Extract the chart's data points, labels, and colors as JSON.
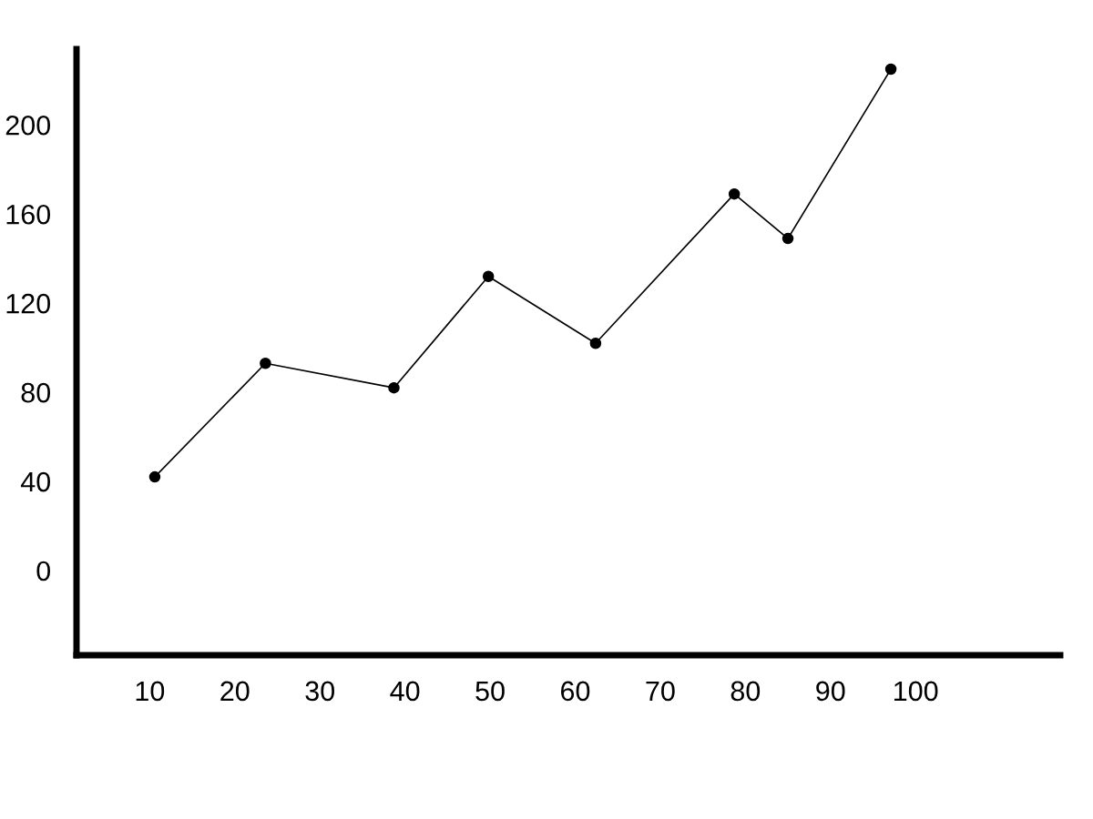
{
  "chart_data": {
    "type": "line",
    "x": [
      10.6,
      23.6,
      38.7,
      49.8,
      62.4,
      78.7,
      85,
      97.1
    ],
    "values": [
      42,
      93,
      82,
      132,
      102,
      169,
      149,
      225
    ],
    "color": "#000000",
    "marker": "circle",
    "line_style": "solid",
    "xlim": [
      1.4,
      117
    ],
    "ylim": [
      -38,
      234
    ],
    "xticks": [
      10,
      20,
      30,
      40,
      50,
      60,
      70,
      80,
      90,
      100
    ],
    "yticks": [
      0,
      40,
      80,
      120,
      160,
      200
    ],
    "grid": false,
    "legend": false
  }
}
